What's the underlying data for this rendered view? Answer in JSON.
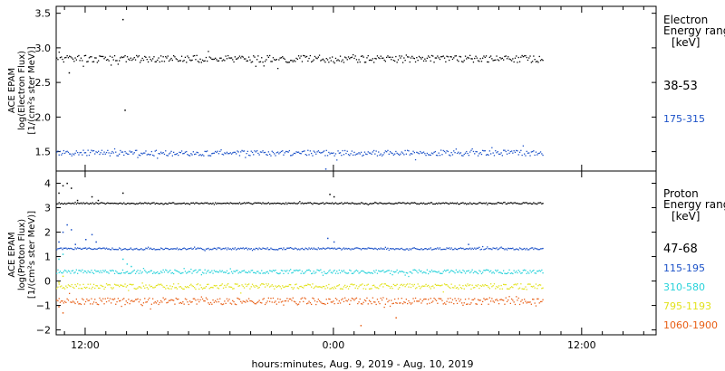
{
  "xlabel": "hours:minutes, Aug.  9, 2019 - Aug. 10, 2019",
  "x_tick_labels": [
    "12:00",
    "0:00",
    "12:00"
  ],
  "colors": {
    "black": "#000000",
    "blue": "#1c52c8",
    "cyan": "#27d2da",
    "yellow": "#e2e21c",
    "orange": "#e85e14"
  },
  "chart_data": [
    {
      "type": "scatter",
      "panel": "electron",
      "ylabel_lines": [
        "ACE EPAM",
        "log(Electron Flux)",
        "[1/(cm²s ster MeV)]"
      ],
      "ylim": [
        1.22,
        3.6
      ],
      "yticks": [
        1.5,
        2.0,
        2.5,
        3.0,
        3.5
      ],
      "ytick_labels": [
        "1.5",
        "2.0",
        "2.5",
        "3.0",
        "3.5"
      ],
      "xlim_hours": [
        10.6,
        39.6
      ],
      "data_x_range_hours": [
        10.6,
        34.1
      ],
      "legend": {
        "title_lines": [
          "Electron",
          "Energy ranges"
        ],
        "unit": "[keV]"
      },
      "series": [
        {
          "name": "38-53",
          "color": "#000000",
          "level": 2.84,
          "jitter": 0.05,
          "noise": 0.1,
          "outliers": [
            [
              13.8,
              3.41
            ],
            [
              13.9,
              2.1
            ],
            [
              11.2,
              2.64
            ]
          ]
        },
        {
          "name": "175-315",
          "color": "#1c52c8",
          "level": 1.48,
          "jitter": 0.04,
          "noise": 0.08,
          "outliers": [
            [
              23.6,
              1.25
            ]
          ]
        }
      ]
    },
    {
      "type": "scatter",
      "panel": "proton",
      "ylabel_lines": [
        "ACE EPAM",
        "log(Proton Flux)",
        "[1/(cm²s ster MeV)]"
      ],
      "ylim": [
        -2.2,
        4.5
      ],
      "yticks": [
        -2,
        -1,
        0,
        1,
        2,
        3,
        4
      ],
      "ytick_labels": [
        "−2",
        "−1",
        "0",
        "1",
        "2",
        "3",
        "4"
      ],
      "xlim_hours": [
        10.6,
        39.6
      ],
      "data_x_range_hours": [
        10.6,
        34.1
      ],
      "legend": {
        "title_lines": [
          "Proton",
          "Energy ranges"
        ],
        "unit": "[keV]"
      },
      "series": [
        {
          "name": "47-68",
          "color": "#000000",
          "level": 3.18,
          "jitter": 0.03,
          "noise": 0.05,
          "early": [
            [
              10.7,
              3.6
            ],
            [
              10.9,
              3.9
            ],
            [
              11.1,
              4.0
            ],
            [
              11.3,
              3.8
            ],
            [
              11.6,
              3.3
            ],
            [
              12.3,
              3.45
            ],
            [
              12.6,
              3.3
            ],
            [
              13.8,
              3.6
            ],
            [
              23.8,
              3.55
            ],
            [
              24.0,
              3.45
            ]
          ]
        },
        {
          "name": "115-195",
          "color": "#1c52c8",
          "level": 1.32,
          "jitter": 0.04,
          "noise": 0.08,
          "early": [
            [
              10.7,
              1.6
            ],
            [
              10.9,
              2.0
            ],
            [
              11.1,
              2.3
            ],
            [
              11.3,
              2.1
            ],
            [
              11.5,
              1.5
            ],
            [
              12.0,
              1.7
            ],
            [
              12.3,
              1.9
            ],
            [
              12.5,
              1.6
            ],
            [
              23.7,
              1.75
            ],
            [
              24.0,
              1.6
            ],
            [
              30.5,
              1.5
            ]
          ]
        },
        {
          "name": "310-580",
          "color": "#27d2da",
          "level": 0.38,
          "jitter": 0.08,
          "noise": 0.12,
          "early": [
            [
              10.7,
              0.9
            ],
            [
              10.9,
              1.1
            ],
            [
              13.8,
              0.9
            ],
            [
              14.0,
              0.7
            ],
            [
              14.2,
              0.6
            ]
          ]
        },
        {
          "name": "795-1193",
          "color": "#e2e21c",
          "level": -0.22,
          "jitter": 0.11,
          "noise": 0.18,
          "early": [
            [
              10.7,
              -0.05
            ],
            [
              10.9,
              0.2
            ]
          ]
        },
        {
          "name": "1060-1900",
          "color": "#e85e14",
          "level": -0.82,
          "jitter": 0.14,
          "noise": 0.22,
          "early": [
            [
              10.7,
              -1.05
            ],
            [
              10.9,
              -1.3
            ],
            [
              25.3,
              -1.82
            ],
            [
              27.0,
              -1.5
            ]
          ]
        }
      ]
    }
  ]
}
